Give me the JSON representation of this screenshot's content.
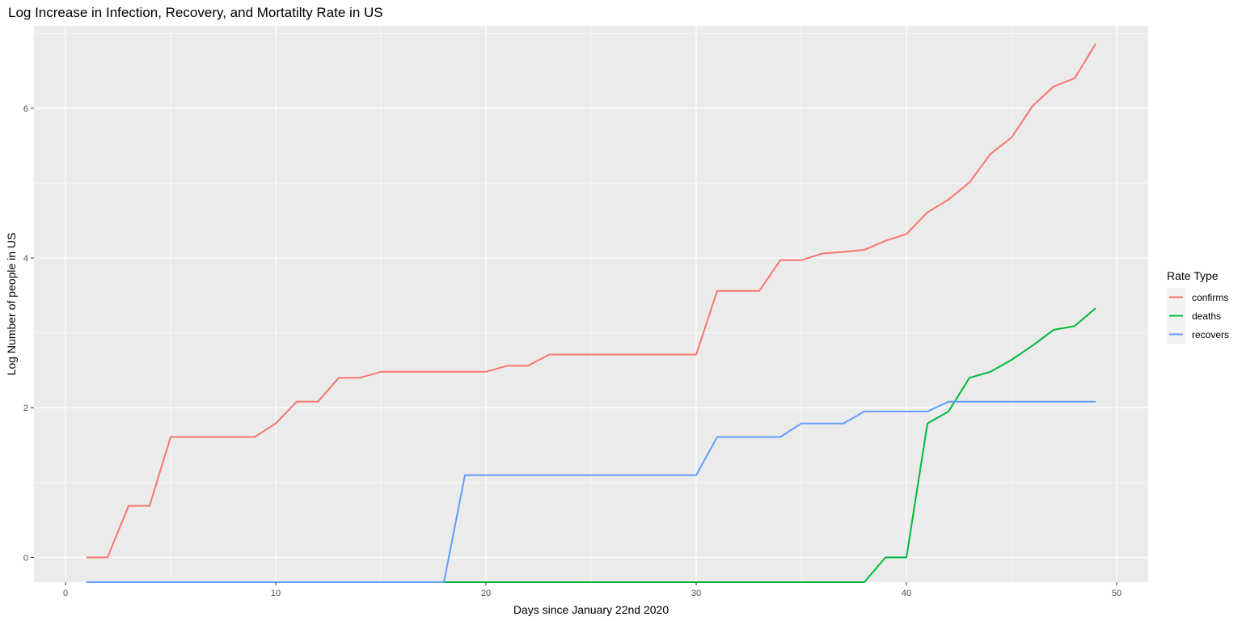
{
  "chart_data": {
    "type": "line",
    "title": "Log Increase in Infection, Recovery, and Mortatilty Rate in US",
    "xlabel": "Days since January 22nd 2020",
    "ylabel": "Log Number of people in US",
    "xlim": [
      -1.5,
      51.5
    ],
    "ylim": [
      -0.33,
      7.1
    ],
    "x_ticks": [
      0,
      10,
      20,
      30,
      40,
      50
    ],
    "y_ticks": [
      0,
      2,
      4,
      6
    ],
    "grid": true,
    "legend": {
      "title": "Rate Type",
      "position": "right"
    },
    "x": [
      1,
      2,
      3,
      4,
      5,
      6,
      7,
      8,
      9,
      10,
      11,
      12,
      13,
      14,
      15,
      16,
      17,
      18,
      19,
      20,
      21,
      22,
      23,
      24,
      25,
      26,
      27,
      28,
      29,
      30,
      31,
      32,
      33,
      34,
      35,
      36,
      37,
      38,
      39,
      40,
      41,
      42,
      43,
      44,
      45,
      46,
      47,
      48,
      49
    ],
    "series": [
      {
        "name": "confirms",
        "color": "#F8766D",
        "values": [
          0,
          0,
          0.69,
          0.69,
          1.61,
          1.61,
          1.61,
          1.61,
          1.61,
          1.79,
          2.08,
          2.08,
          2.4,
          2.4,
          2.48,
          2.48,
          2.48,
          2.48,
          2.48,
          2.48,
          2.56,
          2.56,
          2.71,
          2.71,
          2.71,
          2.71,
          2.71,
          2.71,
          2.71,
          2.71,
          3.56,
          3.56,
          3.56,
          3.97,
          3.97,
          4.06,
          4.08,
          4.11,
          4.23,
          4.32,
          4.61,
          4.78,
          5.01,
          5.39,
          5.61,
          6.03,
          6.29,
          6.4,
          6.86
        ]
      },
      {
        "name": "deaths",
        "color": "#00BA38",
        "values": [
          null,
          null,
          null,
          null,
          null,
          null,
          null,
          null,
          null,
          null,
          null,
          null,
          null,
          null,
          null,
          null,
          null,
          null,
          null,
          null,
          null,
          null,
          null,
          null,
          null,
          null,
          null,
          null,
          null,
          null,
          null,
          null,
          null,
          null,
          null,
          null,
          null,
          null,
          0,
          0,
          1.79,
          1.95,
          2.4,
          2.48,
          2.64,
          2.83,
          3.04,
          3.09,
          3.33
        ]
      },
      {
        "name": "recovers",
        "color": "#619CFF",
        "values": [
          null,
          null,
          null,
          null,
          null,
          null,
          null,
          null,
          null,
          null,
          null,
          null,
          null,
          null,
          null,
          null,
          null,
          null,
          1.1,
          1.1,
          1.1,
          1.1,
          1.1,
          1.1,
          1.1,
          1.1,
          1.1,
          1.1,
          1.1,
          1.1,
          1.61,
          1.61,
          1.61,
          1.61,
          1.79,
          1.79,
          1.79,
          1.95,
          1.95,
          1.95,
          1.95,
          2.08,
          2.08,
          2.08,
          2.08,
          2.08,
          2.08,
          2.08,
          2.08
        ]
      }
    ]
  }
}
